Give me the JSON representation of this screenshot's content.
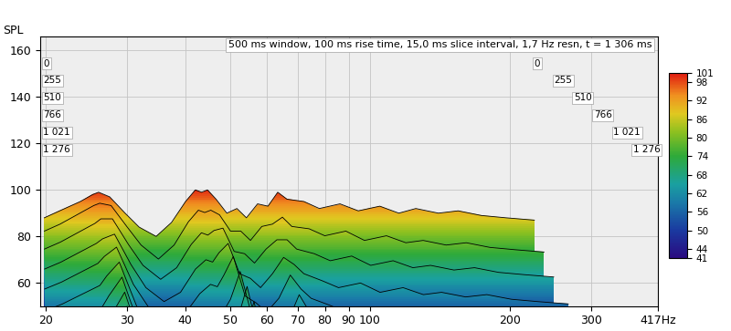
{
  "chart_data": {
    "type": "waterfall",
    "title": "500 ms window, 100 ms rise time, 15,0 ms slice interval, 1,7 Hz resn, t = 1 306 ms",
    "y_label": "SPL",
    "log": "x",
    "grid": true,
    "xlim": [
      19.5,
      417
    ],
    "xticks": [
      20,
      30,
      40,
      50,
      60,
      70,
      80,
      90,
      100,
      200,
      300,
      {
        "value": 417,
        "label": "417Hz"
      }
    ],
    "ylim": [
      50,
      166
    ],
    "yticks": [
      60,
      80,
      100,
      120,
      140,
      160
    ],
    "zlim": [
      0,
      1276
    ],
    "zticks": [
      0,
      255,
      510,
      766,
      {
        "value": 1021,
        "label": "1 021"
      },
      {
        "value": 1276,
        "label": "1 276"
      }
    ],
    "colorbar": {
      "lim": [
        41,
        101
      ],
      "ticks": [
        41,
        44,
        50,
        56,
        62,
        68,
        74,
        80,
        86,
        92,
        98,
        101
      ]
    },
    "x": [
      20,
      22,
      25,
      27,
      28,
      30,
      33,
      36,
      40,
      44,
      48,
      51,
      53,
      55,
      58,
      62,
      66,
      70,
      75,
      80,
      85,
      90,
      100,
      110,
      125,
      140,
      160,
      180,
      200,
      230,
      260,
      300,
      350,
      417
    ],
    "slices": [
      {
        "time": 0,
        "values": [
          88,
          91,
          95,
          98,
          99,
          97,
          90,
          84,
          80,
          86,
          95,
          100,
          99,
          100,
          96,
          90,
          92,
          88,
          94,
          93,
          99,
          96,
          95,
          92,
          94,
          91,
          93,
          90,
          92,
          90,
          91,
          89,
          88,
          87
        ]
      },
      {
        "time": 100,
        "values": [
          84,
          87,
          92,
          95,
          96,
          95,
          86,
          78,
          72,
          78,
          88,
          93,
          92,
          93,
          91,
          84,
          84,
          80,
          86,
          87,
          90,
          86,
          85,
          82,
          84,
          80,
          82,
          79,
          80,
          78,
          79,
          77,
          76,
          75
        ]
      },
      {
        "time": 200,
        "values": [
          78,
          81,
          86,
          89,
          91,
          91,
          80,
          71,
          65,
          70,
          80,
          85,
          84,
          86,
          87,
          77,
          76,
          72,
          78,
          82,
          82,
          78,
          76,
          73,
          75,
          71,
          73,
          70,
          71,
          69,
          70,
          68,
          67,
          66
        ]
      },
      {
        "time": 350,
        "values": [
          72,
          75,
          80,
          83,
          85,
          87,
          74,
          64,
          58,
          62,
          72,
          76,
          75,
          79,
          83,
          70,
          68,
          64,
          70,
          77,
          74,
          70,
          67,
          64,
          66,
          62,
          64,
          61,
          62,
          60,
          61,
          59,
          58,
          57
        ]
      },
      {
        "time": 500,
        "values": [
          66,
          69,
          74,
          77,
          80,
          84,
          68,
          58,
          52,
          55,
          64,
          68,
          67,
          72,
          80,
          63,
          60,
          56,
          62,
          72,
          66,
          62,
          59,
          56,
          58,
          54,
          56,
          53,
          54,
          52,
          53,
          51,
          50,
          49
        ]
      },
      {
        "time": 700,
        "values": [
          60,
          63,
          68,
          71,
          75,
          81,
          62,
          52,
          46,
          48,
          57,
          60,
          60,
          65,
          77,
          57,
          53,
          49,
          55,
          67,
          59,
          55,
          52,
          49,
          51,
          47,
          49,
          46,
          47,
          45,
          46,
          44,
          43,
          42
        ]
      },
      {
        "time": 900,
        "values": [
          55,
          57,
          62,
          65,
          70,
          78,
          56,
          47,
          41,
          43,
          51,
          54,
          54,
          59,
          74,
          51,
          47,
          43,
          49,
          62,
          53,
          49,
          46,
          43,
          45,
          41,
          43,
          41,
          41,
          41,
          41,
          41,
          41,
          41
        ]
      },
      {
        "time": 1100,
        "values": [
          50,
          52,
          57,
          60,
          65,
          75,
          51,
          43,
          41,
          41,
          46,
          48,
          48,
          53,
          71,
          46,
          42,
          41,
          44,
          57,
          47,
          44,
          41,
          41,
          41,
          41,
          41,
          41,
          41,
          41,
          41,
          41,
          41,
          41
        ]
      },
      {
        "time": 1276,
        "values": [
          46,
          48,
          52,
          55,
          60,
          72,
          47,
          41,
          41,
          41,
          42,
          43,
          43,
          48,
          68,
          42,
          41,
          41,
          41,
          53,
          43,
          41,
          41,
          41,
          41,
          41,
          41,
          41,
          41,
          41,
          41,
          41,
          41,
          41
        ]
      }
    ]
  }
}
